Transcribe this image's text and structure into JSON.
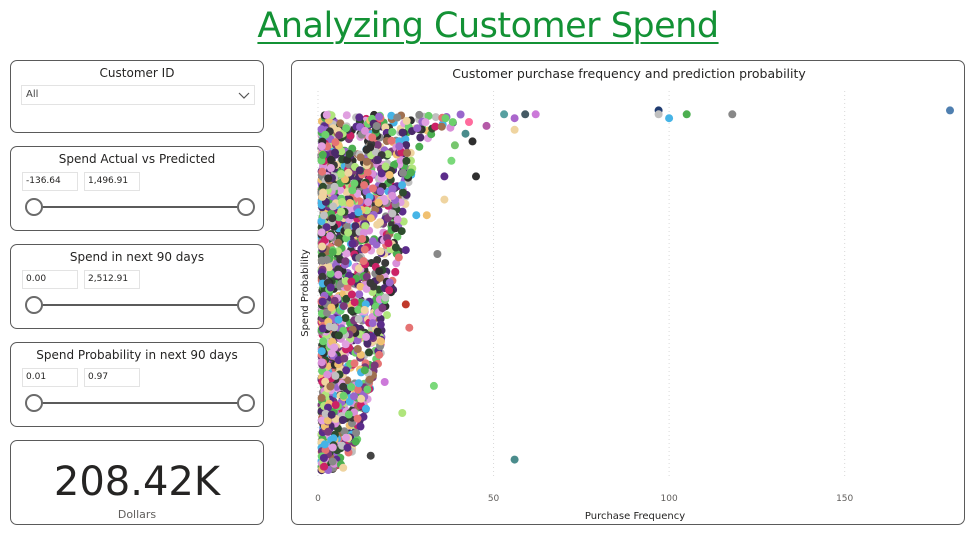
{
  "page": {
    "title": "Analyzing Customer Spend"
  },
  "customer_filter": {
    "title": "Customer ID",
    "value": "All"
  },
  "slicers": [
    {
      "title": "Spend Actual vs Predicted",
      "min": "-136.64",
      "max": "1,496.91"
    },
    {
      "title": "Spend in next 90 days",
      "min": "0.00",
      "max": "2,512.91"
    },
    {
      "title": "Spend Probability in next 90 days",
      "min": "0.01",
      "max": "0.97"
    }
  ],
  "kpi": {
    "value": "208.42K",
    "label": "Dollars"
  },
  "chart_data": {
    "type": "scatter",
    "title": "Customer purchase frequency and prediction probability",
    "xlabel": "Purchase Frequency",
    "ylabel": "Spend Probability",
    "xlim": [
      0,
      180
    ],
    "ylim": [
      0,
      1
    ],
    "x_ticks": [
      0,
      50,
      100,
      150
    ],
    "x_tick_labels": [
      "0",
      "50",
      "100",
      "150"
    ],
    "y_ticks_shown": false,
    "grid": "vertical dotted",
    "points": [
      {
        "x": 53,
        "y": 0.94,
        "color": "#57a0a0"
      },
      {
        "x": 56,
        "y": 0.93,
        "color": "#aa66cc"
      },
      {
        "x": 59,
        "y": 0.94,
        "color": "#455a64"
      },
      {
        "x": 62,
        "y": 0.94,
        "color": "#cc79d9"
      },
      {
        "x": 97,
        "y": 0.95,
        "color": "#1f3b70"
      },
      {
        "x": 97,
        "y": 0.94,
        "color": "#c0c0c0"
      },
      {
        "x": 100,
        "y": 0.93,
        "color": "#46b4e6"
      },
      {
        "x": 105,
        "y": 0.94,
        "color": "#4caf50"
      },
      {
        "x": 118,
        "y": 0.94,
        "color": "#888888"
      },
      {
        "x": 180,
        "y": 0.95,
        "color": "#4f7fb0"
      },
      {
        "x": 56,
        "y": 0.9,
        "color": "#efd4a0"
      },
      {
        "x": 48,
        "y": 0.91,
        "color": "#b55aa8"
      },
      {
        "x": 43,
        "y": 0.92,
        "color": "#ff6b9d"
      },
      {
        "x": 44,
        "y": 0.87,
        "color": "#2f2f2f"
      },
      {
        "x": 39,
        "y": 0.86,
        "color": "#77c66e"
      },
      {
        "x": 42,
        "y": 0.89,
        "color": "#4a8c8c"
      },
      {
        "x": 38,
        "y": 0.82,
        "color": "#7ad97a"
      },
      {
        "x": 45,
        "y": 0.78,
        "color": "#2f2f2f"
      },
      {
        "x": 36,
        "y": 0.78,
        "color": "#5b2c8a"
      },
      {
        "x": 36,
        "y": 0.72,
        "color": "#efd4a0"
      },
      {
        "x": 31,
        "y": 0.68,
        "color": "#f0c070"
      },
      {
        "x": 28,
        "y": 0.68,
        "color": "#46b4e6"
      },
      {
        "x": 34,
        "y": 0.58,
        "color": "#888888"
      },
      {
        "x": 25,
        "y": 0.59,
        "color": "#5b2c8a"
      },
      {
        "x": 26,
        "y": 0.39,
        "color": "#e57373"
      },
      {
        "x": 25,
        "y": 0.45,
        "color": "#c0392b"
      },
      {
        "x": 33,
        "y": 0.24,
        "color": "#7ad97a"
      },
      {
        "x": 17,
        "y": 0.38,
        "color": "#2f2f2f"
      },
      {
        "x": 19,
        "y": 0.25,
        "color": "#cc79d9"
      },
      {
        "x": 24,
        "y": 0.17,
        "color": "#b0e57c"
      },
      {
        "x": 56,
        "y": 0.05,
        "color": "#4a8c8c"
      },
      {
        "x": 15,
        "y": 0.06,
        "color": "#444"
      }
    ],
    "colors": [
      "#2f2f2f",
      "#4a2a6a",
      "#7a3a7a",
      "#4caf50",
      "#b0e57c",
      "#888888",
      "#d98fd9",
      "#cc2266",
      "#f0c070",
      "#46b4e6",
      "#efd4a0",
      "#5b2c8a",
      "#3a3a3a",
      "#a07050",
      "#6cd06c",
      "#c0c0c0",
      "#9966cc",
      "#e57373",
      "#2e4d2e",
      "#e0a0e0"
    ]
  }
}
